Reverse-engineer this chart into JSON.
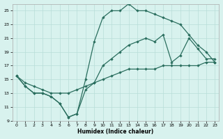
{
  "xlabel": "Humidex (Indice chaleur)",
  "bg_color": "#d8f2ee",
  "grid_color": "#b8ddd8",
  "line_color": "#2a6e5e",
  "xlim": [
    -0.5,
    23.5
  ],
  "ylim": [
    9,
    26
  ],
  "xticks": [
    0,
    1,
    2,
    3,
    4,
    5,
    6,
    7,
    8,
    9,
    10,
    11,
    12,
    13,
    14,
    15,
    16,
    17,
    18,
    19,
    20,
    21,
    22,
    23
  ],
  "yticks": [
    9,
    11,
    13,
    15,
    17,
    19,
    21,
    23,
    25
  ],
  "curve1_x": [
    0,
    1,
    2,
    3,
    4,
    5,
    6,
    7,
    8,
    9,
    10,
    11,
    12,
    13,
    14,
    15,
    16,
    17,
    18,
    19,
    20,
    21,
    22,
    23
  ],
  "curve1_y": [
    15.5,
    14.0,
    13.0,
    13.0,
    12.5,
    11.5,
    9.5,
    10.0,
    15.0,
    20.5,
    24.0,
    25.0,
    25.0,
    26.0,
    25.0,
    25.0,
    24.5,
    24.0,
    23.5,
    23.0,
    21.5,
    20.0,
    19.0,
    17.5
  ],
  "curve2_x": [
    0,
    1,
    2,
    3,
    4,
    5,
    6,
    7,
    8,
    9,
    10,
    11,
    12,
    13,
    14,
    15,
    16,
    17,
    18,
    19,
    20,
    21,
    22,
    23
  ],
  "curve2_y": [
    15.5,
    14.0,
    13.0,
    13.0,
    12.5,
    11.5,
    9.5,
    10.0,
    13.5,
    14.5,
    17.0,
    18.0,
    19.0,
    20.0,
    20.5,
    21.0,
    20.5,
    21.5,
    17.5,
    18.5,
    21.0,
    19.5,
    18.0,
    18.0
  ],
  "curve3_x": [
    0,
    1,
    2,
    3,
    4,
    5,
    6,
    7,
    8,
    9,
    10,
    11,
    12,
    13,
    14,
    15,
    16,
    17,
    18,
    19,
    20,
    21,
    22,
    23
  ],
  "curve3_y": [
    15.5,
    14.5,
    14.0,
    13.5,
    13.0,
    13.0,
    13.0,
    13.5,
    14.0,
    14.5,
    15.0,
    15.5,
    16.0,
    16.5,
    16.5,
    16.5,
    16.5,
    17.0,
    17.0,
    17.0,
    17.0,
    17.0,
    17.5,
    17.5
  ]
}
